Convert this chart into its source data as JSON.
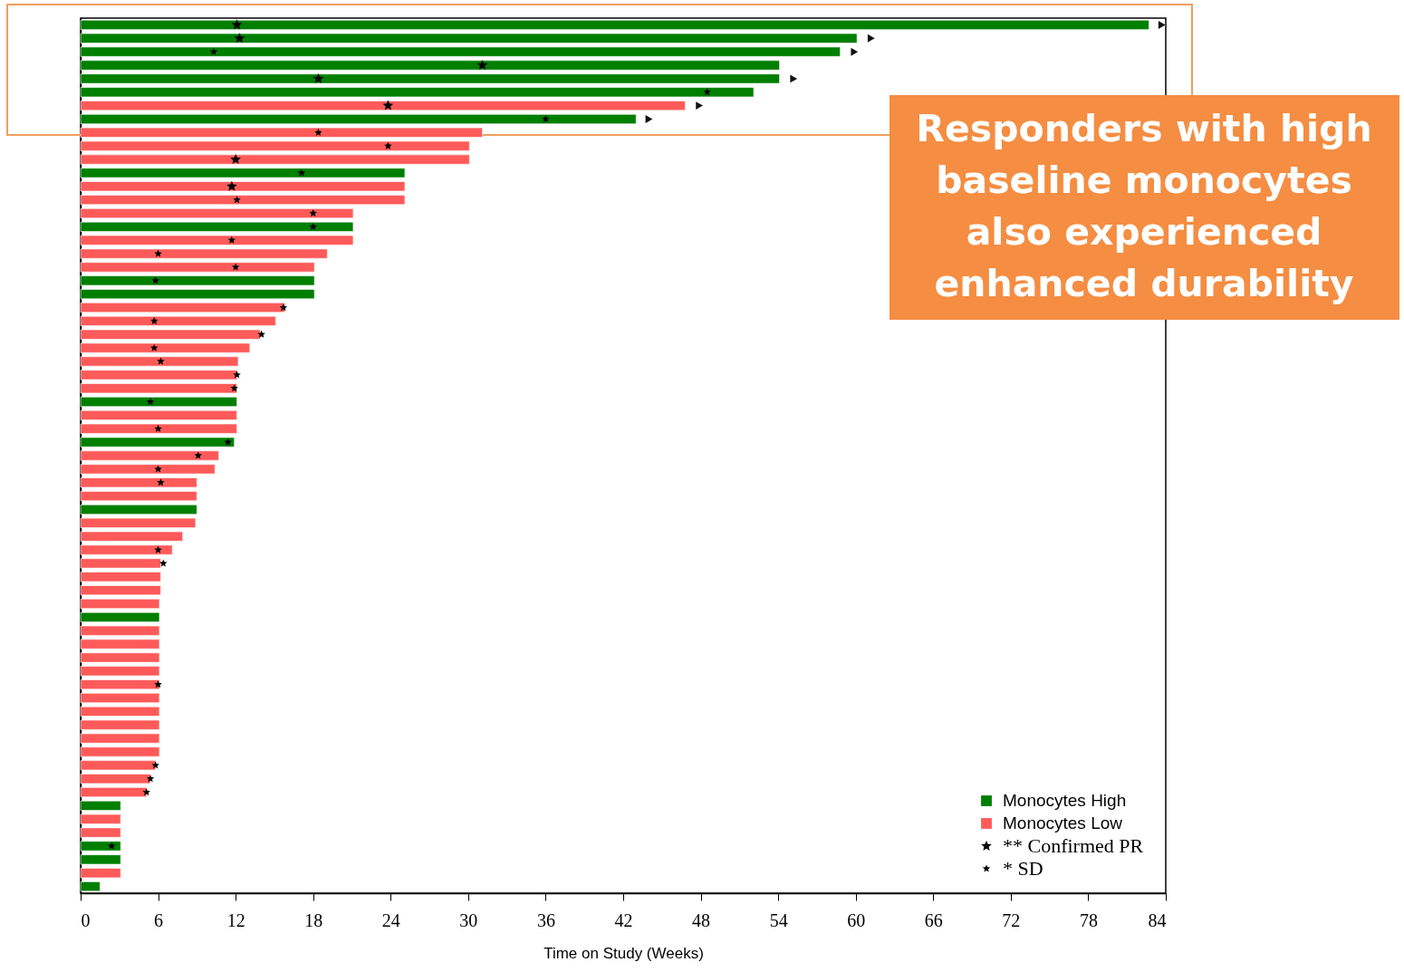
{
  "chart_data": {
    "type": "bar",
    "orientation": "horizontal",
    "xlabel": "Time on Study (Weeks)",
    "categories": [
      null,
      null,
      null,
      null,
      null,
      null,
      null,
      null,
      null,
      null,
      null,
      null,
      null,
      null,
      null,
      null,
      null,
      null,
      null,
      null,
      null,
      null,
      null,
      null,
      null,
      null,
      null,
      null,
      null,
      null,
      null,
      null,
      null,
      null,
      null,
      null,
      null,
      null,
      null,
      null,
      null,
      null,
      null,
      null,
      null,
      null,
      null,
      null,
      null,
      null,
      null,
      null,
      null,
      null,
      null,
      null,
      null,
      null,
      null,
      null,
      null,
      null,
      null,
      null,
      null
    ],
    "series": [
      {
        "name": "Monocytes High",
        "color": "#007f00",
        "values": [
          82.7,
          60.1,
          58.8,
          54.1,
          54.1,
          52.1,
          null,
          43.0,
          null,
          null,
          null,
          25.1,
          null,
          null,
          null,
          21.1,
          null,
          null,
          null,
          18.1,
          18.1,
          null,
          null,
          null,
          null,
          null,
          null,
          null,
          12.1,
          null,
          null,
          11.9,
          null,
          null,
          null,
          null,
          9.0,
          null,
          null,
          null,
          null,
          null,
          null,
          null,
          6.1,
          null,
          null,
          null,
          null,
          null,
          null,
          null,
          null,
          null,
          null,
          null,
          null,
          null,
          3.1,
          null,
          null,
          3.1,
          3.1,
          null,
          1.5
        ]
      },
      {
        "name": "Monocytes Low",
        "color": "#ff5a5a",
        "values": [
          null,
          null,
          null,
          null,
          null,
          null,
          46.8,
          null,
          31.1,
          30.1,
          30.1,
          null,
          25.1,
          25.1,
          21.1,
          null,
          21.1,
          19.1,
          18.1,
          null,
          null,
          15.8,
          15.1,
          13.9,
          13.1,
          12.2,
          12.1,
          12.1,
          null,
          12.1,
          12.1,
          null,
          10.7,
          10.4,
          9.0,
          9.0,
          null,
          8.9,
          7.9,
          7.1,
          6.2,
          6.2,
          6.2,
          6.1,
          null,
          6.1,
          6.1,
          6.1,
          6.1,
          6.1,
          6.1,
          6.1,
          6.1,
          6.1,
          6.1,
          5.8,
          5.4,
          5.1,
          null,
          3.1,
          3.1,
          null,
          null,
          3.1,
          null
        ]
      },
      {
        "name": "** Confirmed PR",
        "type": "scatter",
        "marker": "star",
        "color": "#000000",
        "values": [
          12.1,
          12.3,
          null,
          31.1,
          18.4,
          null,
          23.8,
          null,
          null,
          null,
          12.0,
          null,
          11.7,
          null,
          null,
          null,
          null,
          null,
          null,
          null,
          null,
          null,
          null,
          null,
          null,
          null,
          null,
          null,
          null,
          null,
          null,
          null,
          null,
          null,
          null,
          null,
          null,
          null,
          null,
          null,
          null,
          null,
          null,
          null,
          null,
          null,
          null,
          null,
          null,
          null,
          null,
          null,
          null,
          null,
          null,
          null,
          null,
          null,
          null,
          null,
          null,
          null,
          null,
          null,
          null
        ]
      },
      {
        "name": "* SD",
        "type": "scatter",
        "marker": "star",
        "color": "#000000",
        "values": [
          null,
          null,
          10.3,
          null,
          null,
          48.5,
          null,
          36.0,
          18.4,
          23.8,
          null,
          17.1,
          null,
          12.1,
          18.0,
          18.0,
          11.7,
          6.0,
          12.0,
          5.8,
          null,
          15.7,
          5.7,
          14.0,
          5.7,
          6.2,
          12.1,
          11.9,
          5.4,
          null,
          6.0,
          11.4,
          9.1,
          6.0,
          6.2,
          null,
          null,
          null,
          null,
          6.0,
          6.4,
          null,
          null,
          null,
          null,
          null,
          null,
          null,
          null,
          6.0,
          null,
          null,
          null,
          null,
          null,
          5.8,
          5.4,
          5.1,
          null,
          null,
          null,
          2.4,
          null,
          null,
          null
        ]
      },
      {
        "type": "scatter",
        "marker": "triangle",
        "color": "#111111",
        "values": [
          83.7,
          61.2,
          59.9,
          null,
          55.2,
          null,
          47.9,
          44.0,
          null,
          null,
          null,
          null,
          null,
          null,
          null,
          null,
          null,
          null,
          null,
          null,
          null,
          null,
          null,
          null,
          null,
          null,
          null,
          null,
          null,
          null,
          null,
          null,
          null,
          null,
          null,
          null,
          null,
          null,
          null,
          null,
          null,
          null,
          null,
          null,
          null,
          null,
          null,
          null,
          null,
          null,
          null,
          null,
          null,
          null,
          null,
          null,
          null,
          null,
          null,
          null,
          null,
          null,
          null,
          null,
          null
        ]
      }
    ],
    "xlim": [
      0,
      84
    ],
    "xticks": [
      0,
      6,
      12,
      18,
      24,
      30,
      36,
      42,
      48,
      54,
      60,
      66,
      72,
      78,
      84
    ],
    "tick_labels": "x",
    "grid": false,
    "legend": "bottom right",
    "annotations": [
      "Responders with high baseline monocytes also experienced enhanced durability"
    ]
  }
}
